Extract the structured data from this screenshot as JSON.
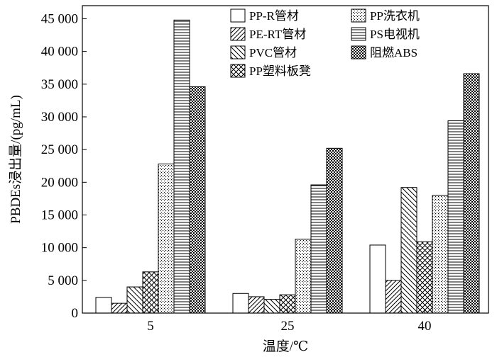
{
  "chart_data": {
    "type": "bar",
    "title": "",
    "xlabel": "温度/℃",
    "ylabel": "PBDEs浸出量/(pg/mL)",
    "ylim": [
      0,
      47000
    ],
    "yticks": [
      0,
      5000,
      10000,
      15000,
      20000,
      25000,
      30000,
      35000,
      40000,
      45000
    ],
    "ytick_labels": [
      "0",
      "5 000",
      "10 000",
      "15 000",
      "20 000",
      "25 000",
      "30 000",
      "35 000",
      "40 000",
      "45 000"
    ],
    "categories": [
      "5",
      "25",
      "40"
    ],
    "grid": false,
    "legend_position": "top-right",
    "series": [
      {
        "name": "PP-R管材",
        "pattern": "plain",
        "values": [
          2400,
          3000,
          10400
        ]
      },
      {
        "name": "PE-RT管材",
        "pattern": "diag-up",
        "values": [
          1500,
          2500,
          5000
        ]
      },
      {
        "name": "PVC管材",
        "pattern": "diag-down",
        "values": [
          4000,
          2100,
          19200
        ]
      },
      {
        "name": "PP塑料板凳",
        "pattern": "crosshatch",
        "values": [
          6300,
          2800,
          10900
        ]
      },
      {
        "name": "PP洗衣机",
        "pattern": "dots",
        "values": [
          22800,
          11300,
          18000
        ]
      },
      {
        "name": "PS电视机",
        "pattern": "horizontal",
        "values": [
          44800,
          19600,
          29400
        ]
      },
      {
        "name": "阻燃ABS",
        "pattern": "checker",
        "values": [
          34600,
          25200,
          36600
        ]
      }
    ]
  }
}
